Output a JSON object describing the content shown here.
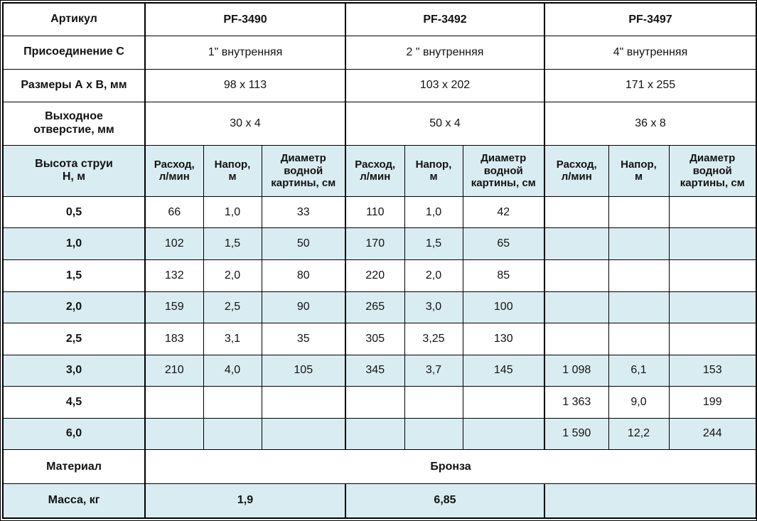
{
  "labels": {
    "article": "Артикул",
    "connection": "Присоединение С",
    "dimensions": "Размеры А х В, мм",
    "outlet": "Выходное\nотверстие, мм",
    "jet_height": "Высота струи\nН, м",
    "material": "Материал",
    "mass": "Масса, кг"
  },
  "column_headers": {
    "flow": "Расход,\nл/мин",
    "head": "Напор,\nм",
    "diameter": "Диаметр\nводной\nкартины, см"
  },
  "heights": [
    "0,5",
    "1,0",
    "1,5",
    "2,0",
    "2,5",
    "3,0",
    "4,5",
    "6,0"
  ],
  "material_value": "Бронза",
  "products": [
    {
      "article": "PF-3490",
      "connection": "1\" внутренняя",
      "dimensions": "98 х 113",
      "outlet": "30 х 4",
      "mass": "1,9",
      "performance": [
        {
          "flow": "66",
          "head": "1,0",
          "diameter": "33"
        },
        {
          "flow": "102",
          "head": "1,5",
          "diameter": "50"
        },
        {
          "flow": "132",
          "head": "2,0",
          "diameter": "80"
        },
        {
          "flow": "159",
          "head": "2,5",
          "diameter": "90"
        },
        {
          "flow": "183",
          "head": "3,1",
          "diameter": "35"
        },
        {
          "flow": "210",
          "head": "4,0",
          "diameter": "105"
        },
        {
          "flow": "",
          "head": "",
          "diameter": ""
        },
        {
          "flow": "",
          "head": "",
          "diameter": ""
        }
      ]
    },
    {
      "article": "PF-3492",
      "connection": "2 \" внутренняя",
      "dimensions": "103 х 202",
      "outlet": "50 х 4",
      "mass": "6,85",
      "performance": [
        {
          "flow": "110",
          "head": "1,0",
          "diameter": "42"
        },
        {
          "flow": "170",
          "head": "1,5",
          "diameter": "65"
        },
        {
          "flow": "220",
          "head": "2,0",
          "diameter": "85"
        },
        {
          "flow": "265",
          "head": "3,0",
          "diameter": "100"
        },
        {
          "flow": "305",
          "head": "3,25",
          "diameter": "130"
        },
        {
          "flow": "345",
          "head": "3,7",
          "diameter": "145"
        },
        {
          "flow": "",
          "head": "",
          "diameter": ""
        },
        {
          "flow": "",
          "head": "",
          "diameter": ""
        }
      ]
    },
    {
      "article": "PF-3497",
      "connection": "4\" внутренняя",
      "dimensions": "171 х 255",
      "outlet": "36 х 8",
      "mass": "",
      "performance": [
        {
          "flow": "",
          "head": "",
          "diameter": ""
        },
        {
          "flow": "",
          "head": "",
          "diameter": ""
        },
        {
          "flow": "",
          "head": "",
          "diameter": ""
        },
        {
          "flow": "",
          "head": "",
          "diameter": ""
        },
        {
          "flow": "",
          "head": "",
          "diameter": ""
        },
        {
          "flow": "1 098",
          "head": "6,1",
          "diameter": "153"
        },
        {
          "flow": "1 363",
          "head": "9,0",
          "diameter": "199"
        },
        {
          "flow": "1 590",
          "head": "12,2",
          "diameter": "244"
        }
      ]
    }
  ],
  "colors": {
    "band_blue": "#d9ecf2",
    "border": "#000000",
    "text": "#121212"
  }
}
